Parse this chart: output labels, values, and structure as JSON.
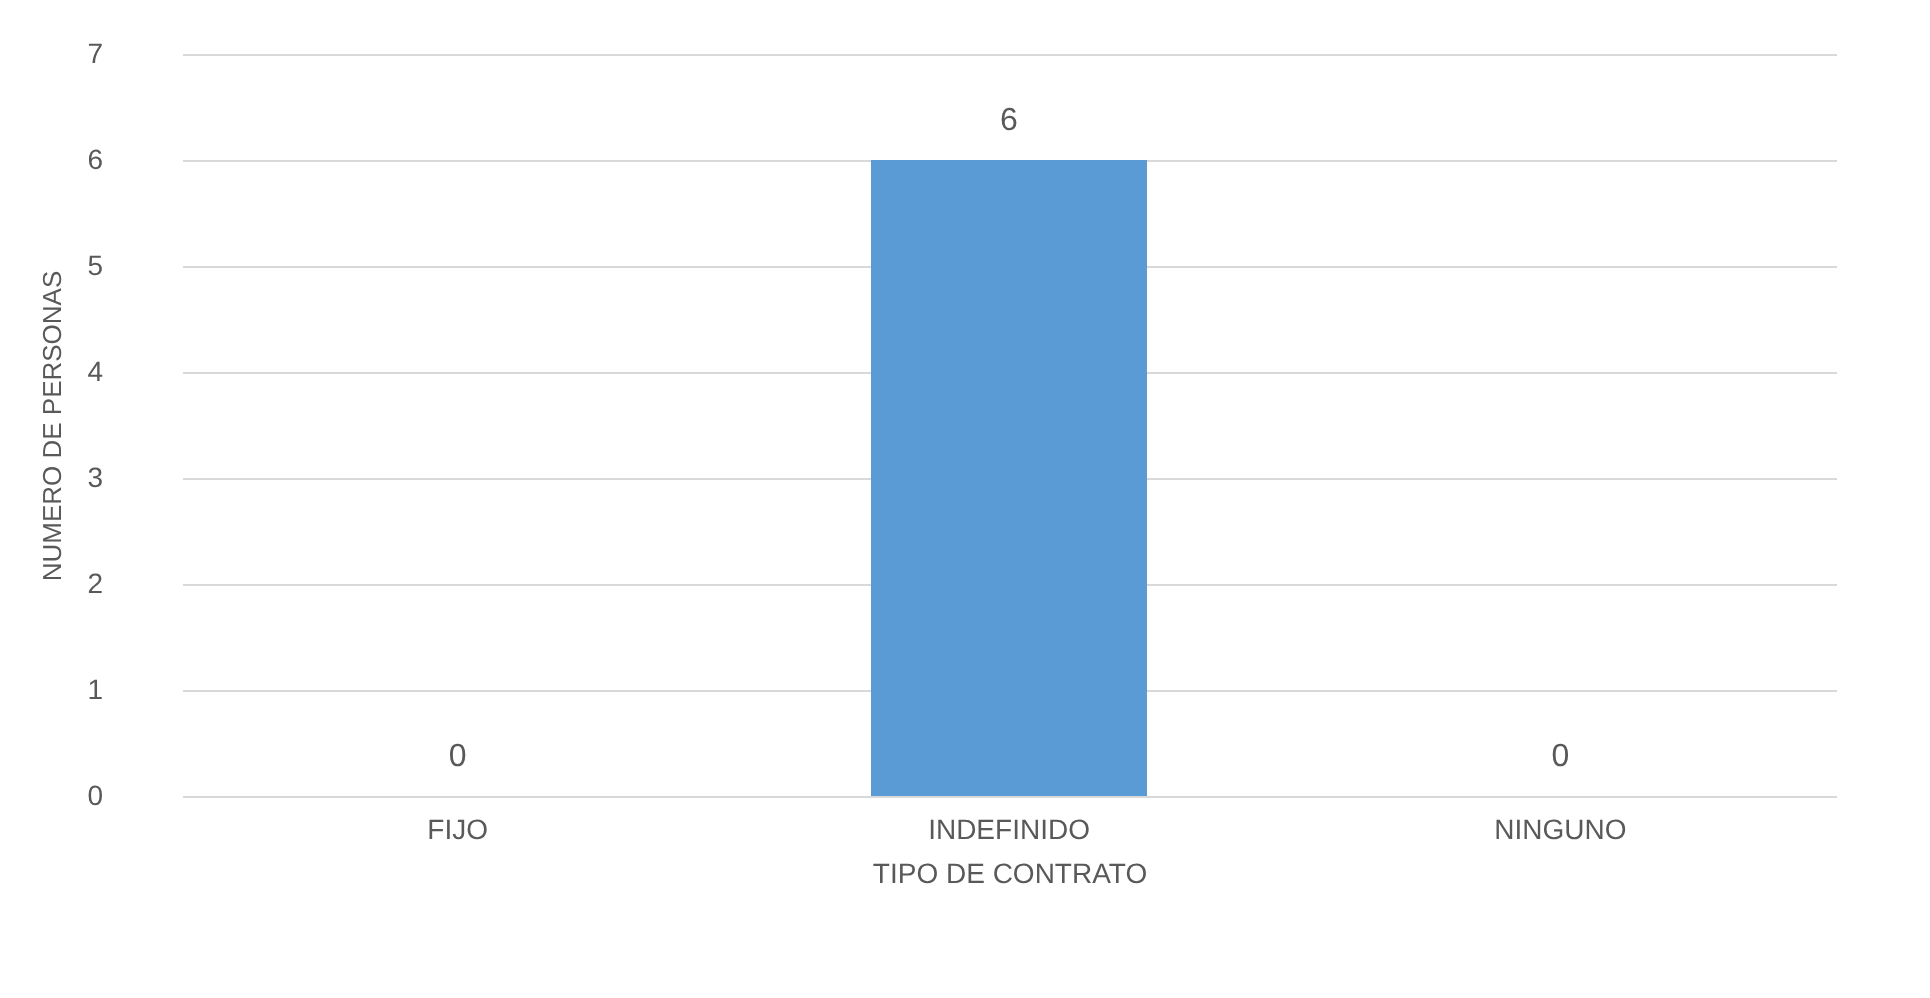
{
  "chart_data": {
    "type": "bar",
    "categories": [
      "FIJO",
      "INDEFINIDO",
      "NINGUNO"
    ],
    "values": [
      0,
      6,
      0
    ],
    "color": "#5b9bd5",
    "xlabel": "TIPO DE CONTRATO",
    "ylabel": "NUMERO DE PERSONAS",
    "ylim": [
      0,
      7
    ],
    "yticks": [
      0,
      1,
      2,
      3,
      4,
      5,
      6,
      7
    ],
    "grid": "y",
    "data_labels": true
  }
}
